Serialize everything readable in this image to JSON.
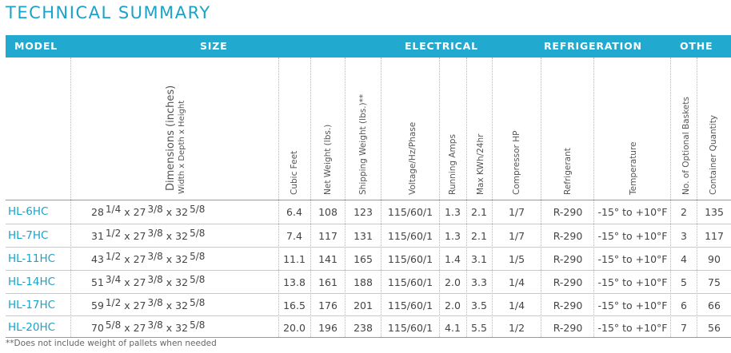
{
  "title": "TECHNICAL SUMMARY",
  "groups": {
    "model": "MODEL",
    "size": "SIZE",
    "electrical": "ELECTRICAL",
    "refrigeration": "REFRIGERATION",
    "other": "OTHE"
  },
  "headers": {
    "dimensions_line1": "Dimensions (inches)",
    "dimensions_line2": "Width x Depth x Height",
    "cubic_feet": "Cubic Feet",
    "net_weight": "Net Weight (lbs.)",
    "shipping_weight": "Shipping Weight (lbs.)**",
    "voltage": "Voltage/Hz/Phase",
    "running_amps": "Running Amps",
    "max_kwh": "Max KWh/24hr",
    "compressor_hp": "Compressor HP",
    "refrigerant": "Refrigerant",
    "temperature": "Temperature",
    "optional_baskets": "No. of Optional Baskets",
    "container_qty": "Container Quantity"
  },
  "rows": [
    {
      "model": "HL-6HC",
      "w_whole": "28",
      "w_frac": "1/4",
      "d_whole": "27",
      "d_frac": "3/8",
      "h_whole": "32",
      "h_frac": "5/8",
      "cubic": "6.4",
      "net": "108",
      "ship": "123",
      "volt": "115/60/1",
      "amps": "1.3",
      "kwh": "2.1",
      "hp": "1/7",
      "refrig": "R-290",
      "temp": "-15° to  +10°F",
      "baskets": "2",
      "qty": "135"
    },
    {
      "model": "HL-7HC",
      "w_whole": "31",
      "w_frac": "1/2",
      "d_whole": "27",
      "d_frac": "3/8",
      "h_whole": "32",
      "h_frac": "5/8",
      "cubic": "7.4",
      "net": "117",
      "ship": "131",
      "volt": "115/60/1",
      "amps": "1.3",
      "kwh": "2.1",
      "hp": "1/7",
      "refrig": "R-290",
      "temp": "-15° to  +10°F",
      "baskets": "3",
      "qty": "117"
    },
    {
      "model": "HL-11HC",
      "w_whole": "43",
      "w_frac": "1/2",
      "d_whole": "27",
      "d_frac": "3/8",
      "h_whole": "32",
      "h_frac": "5/8",
      "cubic": "11.1",
      "net": "141",
      "ship": "165",
      "volt": "115/60/1",
      "amps": "1.4",
      "kwh": "3.1",
      "hp": "1/5",
      "refrig": "R-290",
      "temp": "-15° to  +10°F",
      "baskets": "4",
      "qty": "90"
    },
    {
      "model": "HL-14HC",
      "w_whole": "51",
      "w_frac": "3/4",
      "d_whole": "27",
      "d_frac": "3/8",
      "h_whole": "32",
      "h_frac": "5/8",
      "cubic": "13.8",
      "net": "161",
      "ship": "188",
      "volt": "115/60/1",
      "amps": "2.0",
      "kwh": "3.3",
      "hp": "1/4",
      "refrig": "R-290",
      "temp": "-15° to  +10°F",
      "baskets": "5",
      "qty": "75"
    },
    {
      "model": "HL-17HC",
      "w_whole": "59",
      "w_frac": "1/2",
      "d_whole": "27",
      "d_frac": "3/8",
      "h_whole": "32",
      "h_frac": "5/8",
      "cubic": "16.5",
      "net": "176",
      "ship": "201",
      "volt": "115/60/1",
      "amps": "2.0",
      "kwh": "3.5",
      "hp": "1/4",
      "refrig": "R-290",
      "temp": "-15° to  +10°F",
      "baskets": "6",
      "qty": "66"
    },
    {
      "model": "HL-20HC",
      "w_whole": "70",
      "w_frac": "5/8",
      "d_whole": "27",
      "d_frac": "3/8",
      "h_whole": "32",
      "h_frac": "5/8",
      "cubic": "20.0",
      "net": "196",
      "ship": "238",
      "volt": "115/60/1",
      "amps": "4.1",
      "kwh": "5.5",
      "hp": "1/2",
      "refrig": "R-290",
      "temp": "-15° to  +10°F",
      "baskets": "7",
      "qty": "56"
    }
  ],
  "footnote": "**Does not include weight of pallets when needed"
}
